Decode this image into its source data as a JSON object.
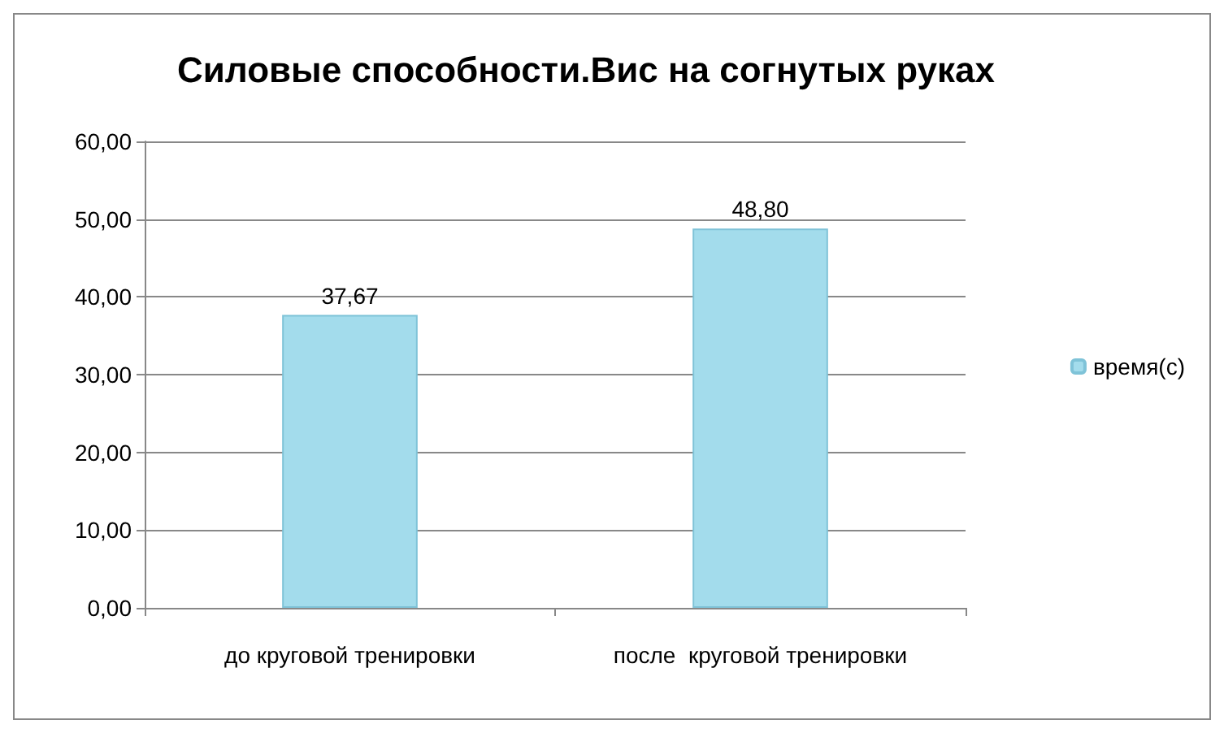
{
  "chart_data": {
    "type": "bar",
    "title": "Силовые способности.Вис на согнутых руках",
    "categories": [
      "до круговой тренировки",
      "после  круговой тренировки"
    ],
    "series": [
      {
        "name": "время(с)",
        "color": "#a3dcec",
        "values": [
          37.67,
          48.8
        ],
        "value_labels": [
          "37,67",
          "48,80"
        ]
      }
    ],
    "ylim": [
      0,
      60
    ],
    "yticks": [
      {
        "value": 0,
        "label": "0,00"
      },
      {
        "value": 10,
        "label": "10,00"
      },
      {
        "value": 20,
        "label": "20,00"
      },
      {
        "value": 30,
        "label": "30,00"
      },
      {
        "value": 40,
        "label": "40,00"
      },
      {
        "value": 50,
        "label": "50,00"
      },
      {
        "value": 60,
        "label": "60,00"
      }
    ],
    "grid": "y",
    "legend": "right"
  }
}
